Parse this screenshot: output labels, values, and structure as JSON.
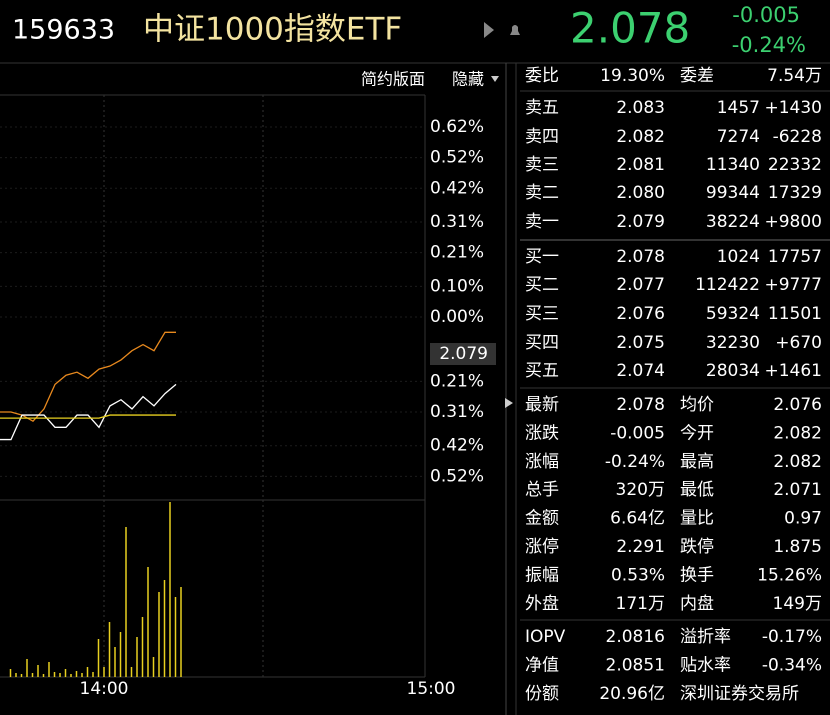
{
  "header": {
    "code": "159633",
    "name": "中证1000指数ETF",
    "price": "2.078",
    "change": "-0.005",
    "change_pct": "-0.24%"
  },
  "toolbar": [
    "简约版面",
    "隐藏"
  ],
  "chart": {
    "type": "line",
    "ylim": [
      -0.62,
      0.62
    ],
    "yticks": [
      {
        "value": 0.62,
        "label": "0.62%"
      },
      {
        "value": 0.52,
        "label": "0.52%"
      },
      {
        "value": 0.42,
        "label": "0.42%"
      },
      {
        "value": 0.31,
        "label": "0.31%"
      },
      {
        "value": 0.21,
        "label": "0.21%"
      },
      {
        "value": 0.1,
        "label": "0.10%"
      },
      {
        "value": 0,
        "label": "0.00%"
      },
      {
        "value": -0.21,
        "label": "0.21%"
      },
      {
        "value": -0.31,
        "label": "0.31%"
      },
      {
        "value": -0.42,
        "label": "0.42%"
      },
      {
        "value": -0.52,
        "label": "0.52%"
      }
    ],
    "price_marker": "2.079",
    "time_labels": [
      "14:00",
      "15:00"
    ],
    "series": [
      {
        "color": "#e8891e",
        "values": [
          -0.31,
          -0.31,
          -0.32,
          -0.34,
          -0.3,
          -0.22,
          -0.19,
          -0.18,
          -0.2,
          -0.17,
          -0.16,
          -0.14,
          -0.11,
          -0.09,
          -0.11,
          -0.05,
          -0.05
        ]
      },
      {
        "color": "#ffffff",
        "values": [
          -0.4,
          -0.4,
          -0.32,
          -0.32,
          -0.32,
          -0.36,
          -0.36,
          -0.32,
          -0.32,
          -0.36,
          -0.29,
          -0.27,
          -0.3,
          -0.26,
          -0.29,
          -0.25,
          -0.22
        ]
      },
      {
        "color": "#e8d020",
        "values": [
          -0.33,
          -0.33,
          -0.33,
          -0.33,
          -0.33,
          -0.33,
          -0.33,
          -0.33,
          -0.33,
          -0.33,
          -0.32,
          -0.32,
          -0.32,
          -0.32,
          -0.32,
          -0.32,
          -0.32
        ]
      }
    ],
    "volume": {
      "color": "#e8d020",
      "values": [
        0,
        8,
        4,
        3,
        18,
        4,
        12,
        3,
        15,
        5,
        4,
        8,
        3,
        6,
        4,
        10,
        5,
        38,
        10,
        55,
        30,
        45,
        150,
        10,
        40,
        60,
        110,
        20,
        85,
        97,
        175,
        80,
        90
      ]
    }
  },
  "ratio": [
    {
      "label": "委比",
      "value": "19.30%",
      "color": "#ff4545"
    },
    {
      "label": "委差",
      "value": "7.54万",
      "color": "#ff4545"
    }
  ],
  "asks": [
    {
      "label": "卖五",
      "price": "2.083",
      "vol": "1457",
      "chg": "+1430",
      "pc": "#ffffff",
      "cc": "#ff4545"
    },
    {
      "label": "卖四",
      "price": "2.082",
      "vol": "7274",
      "chg": "-6228",
      "pc": "#3cd070",
      "cc": "#3cd070"
    },
    {
      "label": "卖三",
      "price": "2.081",
      "vol": "11340",
      "chg": "22332",
      "pc": "#3cd070",
      "cc": "#3cd070"
    },
    {
      "label": "卖二",
      "price": "2.080",
      "vol": "99344",
      "chg": "17329",
      "pc": "#3cd070",
      "cc": "#ff4545"
    },
    {
      "label": "卖一",
      "price": "2.079",
      "vol": "38224",
      "chg": "+9800",
      "pc": "#3cd070",
      "cc": "#ff4545"
    }
  ],
  "bids": [
    {
      "label": "买一",
      "price": "2.078",
      "vol": "1024",
      "chg": "17757",
      "pc": "#3cd070",
      "cc": "#3cd070"
    },
    {
      "label": "买二",
      "price": "2.077",
      "vol": "112422",
      "chg": "+9777",
      "pc": "#3cd070",
      "cc": "#ff4545"
    },
    {
      "label": "买三",
      "price": "2.076",
      "vol": "59324",
      "chg": "11501",
      "pc": "#3cd070",
      "cc": "#ff4545"
    },
    {
      "label": "买四",
      "price": "2.075",
      "vol": "32230",
      "chg": "+670",
      "pc": "#3cd070",
      "cc": "#ff4545"
    },
    {
      "label": "买五",
      "price": "2.074",
      "vol": "28034",
      "chg": "+1461",
      "pc": "#3cd070",
      "cc": "#ff4545"
    }
  ],
  "stats": [
    {
      "l1": "最新",
      "v1": "2.078",
      "c1": "#3cd070",
      "l2": "均价",
      "v2": "2.076",
      "c2": "#3cd070"
    },
    {
      "l1": "涨跌",
      "v1": "-0.005",
      "c1": "#3cd070",
      "l2": "今开",
      "v2": "2.082",
      "c2": "#3cd070"
    },
    {
      "l1": "涨幅",
      "v1": "-0.24%",
      "c1": "#3cd070",
      "l2": "最高",
      "v2": "2.082",
      "c2": "#3cd070"
    },
    {
      "l1": "总手",
      "v1": "320万",
      "c1": "#ffffff",
      "l2": "最低",
      "v2": "2.071",
      "c2": "#3cd070"
    },
    {
      "l1": "金额",
      "v1": "6.64亿",
      "c1": "#30d0ff",
      "l2": "量比",
      "v2": "0.97",
      "c2": "#ffffff"
    },
    {
      "l1": "涨停",
      "v1": "2.291",
      "c1": "#ff4545",
      "l2": "跌停",
      "v2": "1.875",
      "c2": "#3cd070"
    },
    {
      "l1": "振幅",
      "v1": "0.53%",
      "c1": "#ffffff",
      "l2": "换手",
      "v2": "15.26%",
      "c2": "#ffffff"
    },
    {
      "l1": "外盘",
      "v1": "171万",
      "c1": "#ff4545",
      "l2": "内盘",
      "v2": "149万",
      "c2": "#3cd070"
    }
  ],
  "fund": [
    {
      "l1": "IOPV",
      "v1": "2.0816",
      "l2": "溢折率",
      "v2": "-0.17%"
    },
    {
      "l1": "净值",
      "v1": "2.0851",
      "l2": "贴水率",
      "v2": "-0.34%"
    },
    {
      "l1": "份额",
      "v1": "20.96亿",
      "l2": "深圳证券交易所"
    }
  ]
}
